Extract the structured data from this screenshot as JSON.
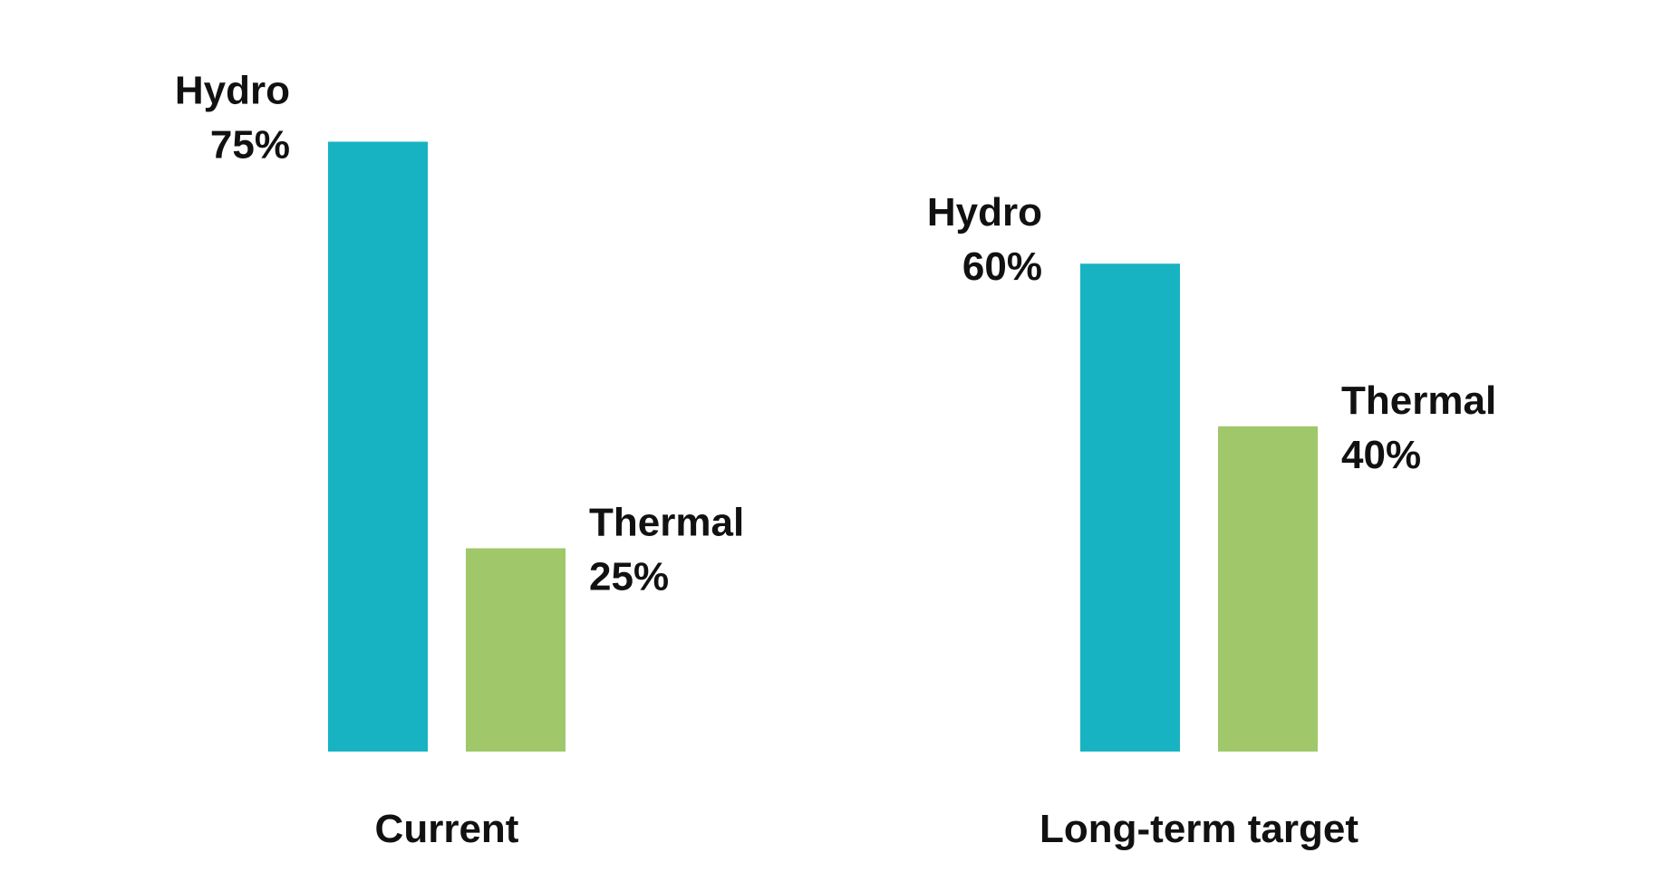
{
  "chart_data": {
    "type": "bar",
    "categories": [
      "Current",
      "Long-term target"
    ],
    "series": [
      {
        "name": "Hydro",
        "values": [
          75,
          60
        ],
        "color": "#17b3c3"
      },
      {
        "name": "Thermal",
        "values": [
          25,
          40
        ],
        "color": "#a0c76a"
      }
    ],
    "value_suffix": "%",
    "ylim": [
      0,
      100
    ],
    "grid": false,
    "axes_visible": false,
    "legend": "none",
    "title": "",
    "xlabel": "",
    "ylabel": ""
  }
}
